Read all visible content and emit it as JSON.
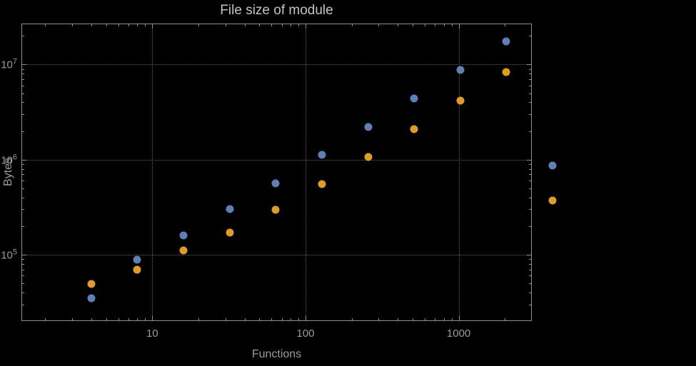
{
  "chart_data": {
    "type": "scatter",
    "title": "File size of module",
    "xlabel": "Functions",
    "ylabel": "Bytes",
    "xscale": "log",
    "yscale": "log",
    "xlim": [
      1.4,
      3000
    ],
    "ylim": [
      20000,
      27000000
    ],
    "grid": "dotted",
    "legend": "none",
    "x_ticks": [
      {
        "value": 10,
        "label": "10"
      },
      {
        "value": 100,
        "label": "100"
      },
      {
        "value": 1000,
        "label": "1000"
      }
    ],
    "y_ticks": [
      {
        "value": 100000,
        "base": "10",
        "exp": "5"
      },
      {
        "value": 1000000,
        "base": "10",
        "exp": "6"
      },
      {
        "value": 10000000,
        "base": "10",
        "exp": "7"
      }
    ],
    "series": [
      {
        "name": "series-blue",
        "color": "#5e81b5",
        "points": [
          [
            4,
            35000
          ],
          [
            8,
            88000
          ],
          [
            16,
            158000
          ],
          [
            32,
            300000
          ],
          [
            64,
            560000
          ],
          [
            128,
            1120000
          ],
          [
            256,
            2200000
          ],
          [
            512,
            4400000
          ],
          [
            1024,
            8800000
          ],
          [
            2048,
            17500000
          ],
          [
            4096,
            860000
          ]
        ]
      },
      {
        "name": "series-orange",
        "color": "#e09c24",
        "points": [
          [
            4,
            49000
          ],
          [
            8,
            70000
          ],
          [
            16,
            110000
          ],
          [
            32,
            172000
          ],
          [
            64,
            295000
          ],
          [
            128,
            550000
          ],
          [
            256,
            1060000
          ],
          [
            512,
            2100000
          ],
          [
            1024,
            4150000
          ],
          [
            2048,
            8300000
          ],
          [
            4096,
            370000
          ]
        ]
      }
    ],
    "colors": {
      "background": "#000000",
      "frame": "#8f8f8f",
      "grid": "#5f5f5f",
      "tick_label": "#9b9b9b",
      "title": "#c3c3c3",
      "axis_label": "#9b9b9b"
    }
  }
}
